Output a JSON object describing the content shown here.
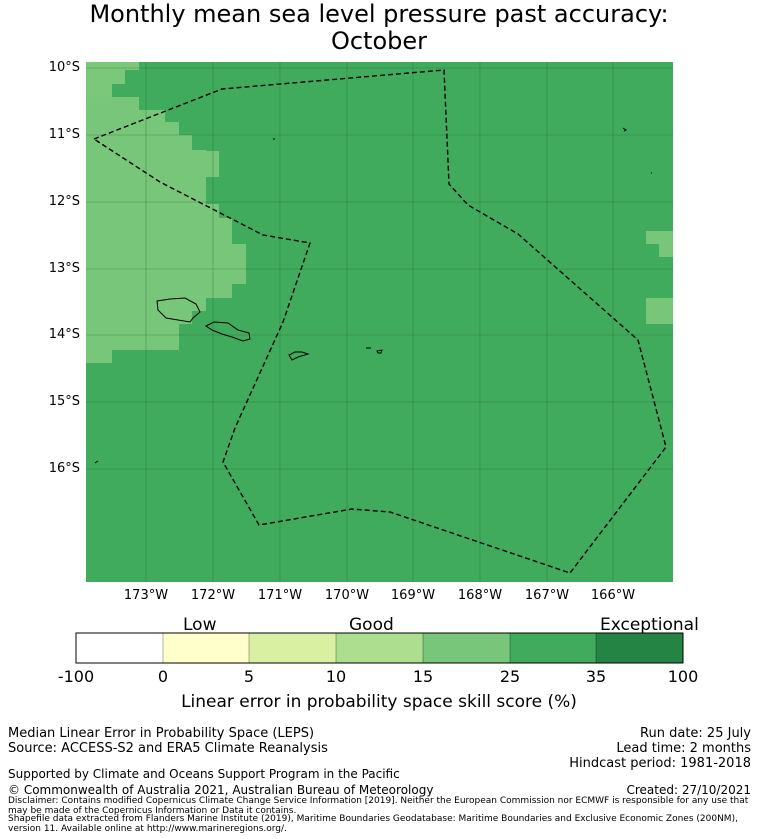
{
  "title": {
    "line1": "Monthly mean sea level pressure past accuracy:",
    "line2": "October"
  },
  "map": {
    "lat_labels": [
      "10°S",
      "11°S",
      "12°S",
      "13°S",
      "14°S",
      "15°S",
      "16°S"
    ],
    "lon_labels": [
      "173°W",
      "172°W",
      "171°W",
      "170°W",
      "169°W",
      "168°W",
      "167°W",
      "166°W"
    ],
    "extent": {
      "lon_min": -174.0,
      "lon_max": -165.2,
      "lat_min": -17.7,
      "lat_max": -9.9
    },
    "base_category": "25-35",
    "regions": [
      {
        "category": "15-25",
        "description": "western region near Samoa, 10°S–14.4°S west of ~171.5°W"
      },
      {
        "category": "15-25",
        "description": "eastern patches near 166°W at 12.5°S–13°S and 13.4°S–13.8°S"
      }
    ],
    "boundary": "Maritime boundary (EEZ) shown as dashed line"
  },
  "colorbar": {
    "categories": [
      "Low",
      "Good",
      "Exceptional"
    ],
    "ticks": [
      "-100",
      "0",
      "5",
      "10",
      "15",
      "25",
      "35",
      "100"
    ],
    "colors": [
      "#ffffff",
      "#ffffcc",
      "#d9f0a3",
      "#addd8e",
      "#78c679",
      "#41ab5d",
      "#238443"
    ],
    "label": "Linear error in probability space skill score (%)"
  },
  "footer": {
    "left1": "Median Linear Error in Probability Space (LEPS)",
    "left2": "Source: ACCESS-S2 and ERA5 Climate Reanalysis",
    "run_date": "Run date: 25 July",
    "lead_time": "Lead time: 2 months",
    "hindcast": "Hindcast period: 1981-2018",
    "supported": "Supported by Climate and Oceans Support Program in the Pacific",
    "copyright": "© Commonwealth of Australia 2021, Australian Bureau of Meteorology",
    "created": "Created: 27/10/2021",
    "disclaimer": "Disclaimer: Contains modified Copernicus Climate Change Service Information [2019]. Neither the European Commission nor ECMWF is responsible for any use that may be made of the Copernicus Information or Data it contains.",
    "shapefile": "Shapefile data extracted from Flanders Marine Institute (2019), Maritime Boundaries Geodatabase: Maritime Boundaries and Exclusive Economic Zones (200NM), version 11. Available online at http://www.marineregions.org/."
  }
}
